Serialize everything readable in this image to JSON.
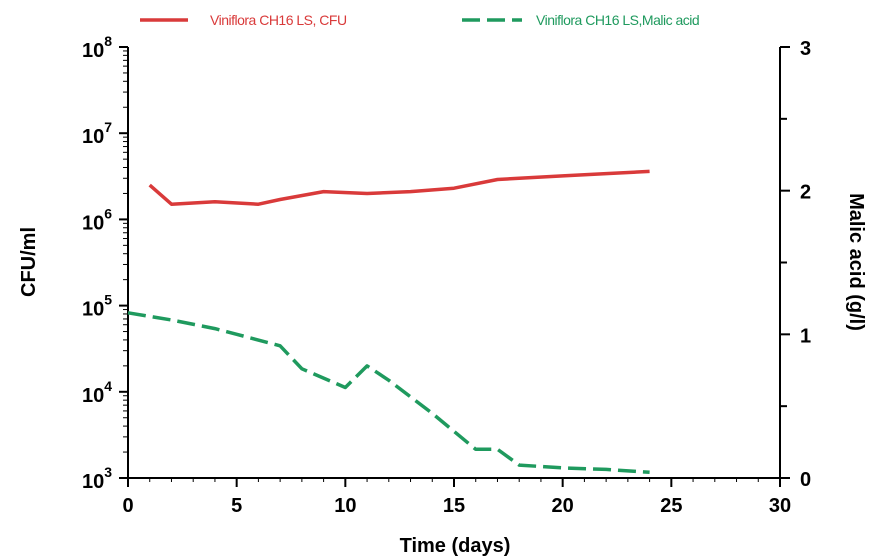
{
  "chart_data": {
    "type": "line",
    "xlabel": "Time (days)",
    "ylabel_left": "CFU/ml",
    "ylabel_right": "Malic acid (g/l)",
    "xlim": [
      0,
      30
    ],
    "ylim_left": [
      1000,
      100000000
    ],
    "ylim_right": [
      0,
      3
    ],
    "left_scale": "log",
    "x_ticks": [
      0,
      5,
      10,
      15,
      20,
      25,
      30
    ],
    "y_right_ticks": [
      0,
      1,
      2,
      3
    ],
    "y_left_ticks": [
      {
        "base": "10",
        "exp": "3"
      },
      {
        "base": "10",
        "exp": "4"
      },
      {
        "base": "10",
        "exp": "5"
      },
      {
        "base": "10",
        "exp": "6"
      },
      {
        "base": "10",
        "exp": "7"
      },
      {
        "base": "10",
        "exp": "8"
      }
    ],
    "grid": false,
    "legend_position": "top",
    "series": [
      {
        "name": "Viniflora CH16 LS, CFU",
        "axis": "left",
        "color": "#d93a3a",
        "style": "solid",
        "x": [
          1,
          2,
          4,
          6,
          7,
          9,
          11,
          13,
          15,
          17,
          18,
          20,
          22,
          24
        ],
        "y": [
          2500000,
          1500000,
          1600000,
          1500000,
          1700000,
          2100000,
          2000000,
          2100000,
          2300000,
          2900000,
          3000000,
          3200000,
          3400000,
          3600000
        ]
      },
      {
        "name": "Viniflora CH16 LS,Malic acid",
        "axis": "right",
        "color": "#1f9a5e",
        "style": "dashed",
        "x": [
          0,
          2,
          4,
          5,
          7,
          8,
          10,
          11,
          12,
          14,
          16,
          17,
          18,
          20,
          22,
          24
        ],
        "y": [
          1.15,
          1.1,
          1.04,
          1.0,
          0.92,
          0.76,
          0.63,
          0.78,
          0.68,
          0.45,
          0.2,
          0.2,
          0.09,
          0.07,
          0.06,
          0.04
        ]
      }
    ]
  }
}
